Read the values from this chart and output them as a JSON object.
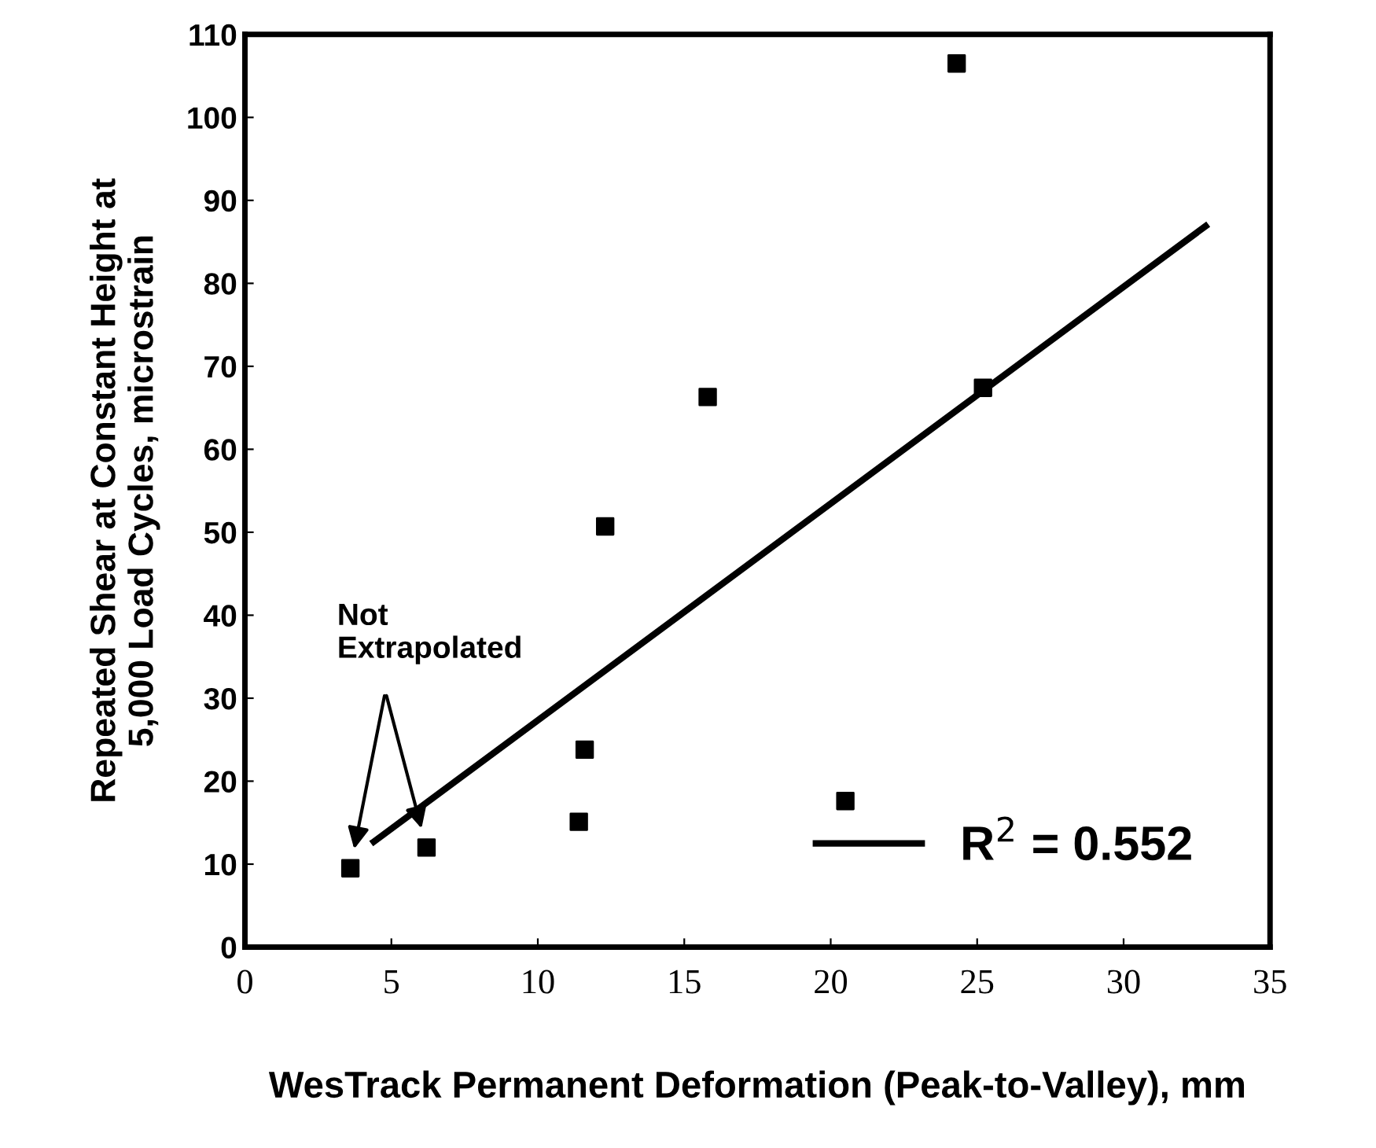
{
  "chart_data": {
    "type": "scatter",
    "xlabel": "WesTrack Permanent Deformation (Peak-to-Valley), mm",
    "ylabel": "Repeated Shear at Constant Height at\n5,000 Load Cycles, microstrain",
    "xlim": [
      0,
      35
    ],
    "xticks": [
      0,
      5,
      10,
      15,
      20,
      25,
      30,
      35
    ],
    "ylim": [
      0,
      110
    ],
    "yticks": [
      0,
      10,
      20,
      30,
      40,
      50,
      60,
      70,
      80,
      90,
      100,
      110
    ],
    "grid": false,
    "legend": "bottom right",
    "series": [
      {
        "marker": "square",
        "color": "#000000",
        "x": [
          3.6,
          6.2,
          11.4,
          11.6,
          12.3,
          15.8,
          20.5,
          24.3,
          25.2
        ],
        "values": [
          9.5,
          12.0,
          15.1,
          23.8,
          50.7,
          66.3,
          17.6,
          106.5,
          67.4
        ]
      },
      {
        "type": "line",
        "marker": "none",
        "name": "R$^{2}$ = 0.552",
        "color": "#000000",
        "line_style": "solid",
        "x": [
          4.4,
          32.8
        ],
        "values": [
          12.7,
          86.9
        ]
      }
    ],
    "annotations": [
      "Not\nExtrapolated"
    ]
  }
}
